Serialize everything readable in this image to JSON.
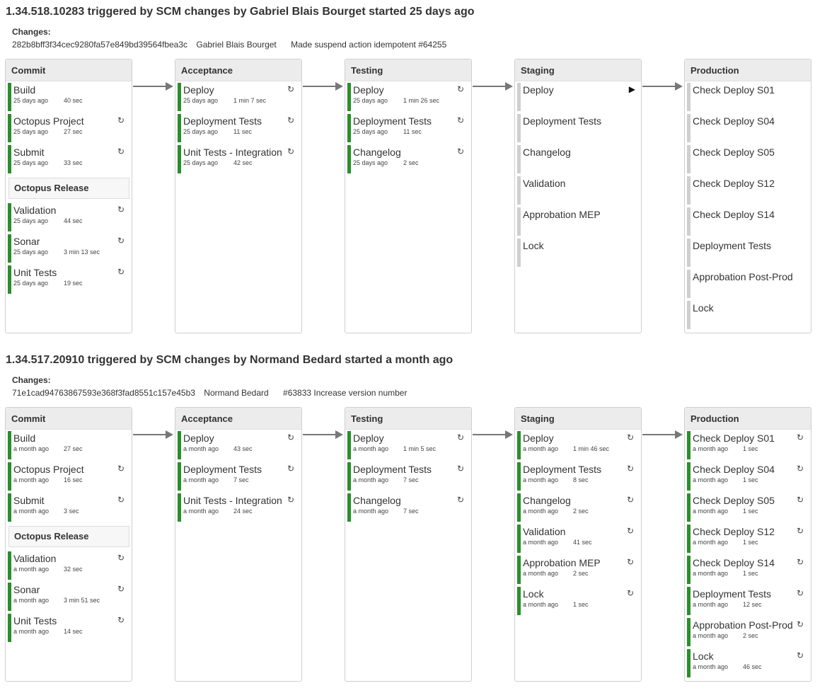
{
  "pipelines": [
    {
      "title": "1.34.518.10283 triggered by SCM changes by Gabriel Blais Bourget started 25 days ago",
      "changes_label": "Changes:",
      "commit_hash": "282b8bff3f34cec9280fa57e849bd39564fbea3c",
      "commit_author": "Gabriel Blais Bourget",
      "commit_message": "Made suspend action idempotent #64255",
      "stages": {
        "commit": {
          "name": "Commit",
          "jobs": [
            {
              "name": "Build",
              "when": "25 days ago",
              "duration": "40 sec"
            },
            {
              "name": "Octopus Project",
              "when": "25 days ago",
              "duration": "27 sec"
            },
            {
              "name": "Submit",
              "when": "25 days ago",
              "duration": "33 sec"
            }
          ],
          "group": "Octopus Release",
          "group_jobs": [
            {
              "name": "Validation",
              "when": "25 days ago",
              "duration": "44 sec"
            },
            {
              "name": "Sonar",
              "when": "25 days ago",
              "duration": "3 min 13 sec"
            },
            {
              "name": "Unit Tests",
              "when": "25 days ago",
              "duration": "19 sec"
            }
          ]
        },
        "acceptance": {
          "name": "Acceptance",
          "jobs": [
            {
              "name": "Deploy",
              "when": "25 days ago",
              "duration": "1 min 7 sec"
            },
            {
              "name": "Deployment Tests",
              "when": "25 days ago",
              "duration": "11 sec"
            },
            {
              "name": "Unit Tests - Integration",
              "when": "25 days ago",
              "duration": "42 sec"
            }
          ]
        },
        "testing": {
          "name": "Testing",
          "jobs": [
            {
              "name": "Deploy",
              "when": "25 days ago",
              "duration": "1 min 26 sec"
            },
            {
              "name": "Deployment Tests",
              "when": "25 days ago",
              "duration": "11 sec"
            },
            {
              "name": "Changelog",
              "when": "25 days ago",
              "duration": "2 sec"
            }
          ]
        },
        "staging": {
          "name": "Staging",
          "jobs": [
            {
              "name": "Deploy"
            },
            {
              "name": "Deployment Tests"
            },
            {
              "name": "Changelog"
            },
            {
              "name": "Validation"
            },
            {
              "name": "Approbation MEP"
            },
            {
              "name": "Lock"
            }
          ]
        },
        "production": {
          "name": "Production",
          "jobs": [
            {
              "name": "Check Deploy S01"
            },
            {
              "name": "Check Deploy S04"
            },
            {
              "name": "Check Deploy S05"
            },
            {
              "name": "Check Deploy S12"
            },
            {
              "name": "Check Deploy S14"
            },
            {
              "name": "Deployment Tests"
            },
            {
              "name": "Approbation Post-Prod"
            },
            {
              "name": "Lock"
            }
          ]
        }
      }
    },
    {
      "title": "1.34.517.20910 triggered by SCM changes by Normand Bedard started a month ago",
      "changes_label": "Changes:",
      "commit_hash": "71e1cad94763867593e368f3fad8551c157e45b3",
      "commit_author": "Normand Bedard",
      "commit_message": "#63833 Increase version number",
      "stages": {
        "commit": {
          "name": "Commit",
          "jobs": [
            {
              "name": "Build",
              "when": "a month ago",
              "duration": "27 sec"
            },
            {
              "name": "Octopus Project",
              "when": "a month ago",
              "duration": "16 sec"
            },
            {
              "name": "Submit",
              "when": "a month ago",
              "duration": "3 sec"
            }
          ],
          "group": "Octopus Release",
          "group_jobs": [
            {
              "name": "Validation",
              "when": "a month ago",
              "duration": "32 sec"
            },
            {
              "name": "Sonar",
              "when": "a month ago",
              "duration": "3 min 51 sec"
            },
            {
              "name": "Unit Tests",
              "when": "a month ago",
              "duration": "14 sec"
            }
          ]
        },
        "acceptance": {
          "name": "Acceptance",
          "jobs": [
            {
              "name": "Deploy",
              "when": "a month ago",
              "duration": "43 sec"
            },
            {
              "name": "Deployment Tests",
              "when": "a month ago",
              "duration": "7 sec"
            },
            {
              "name": "Unit Tests - Integration",
              "when": "a month ago",
              "duration": "24 sec"
            }
          ]
        },
        "testing": {
          "name": "Testing",
          "jobs": [
            {
              "name": "Deploy",
              "when": "a month ago",
              "duration": "1 min 5 sec"
            },
            {
              "name": "Deployment Tests",
              "when": "a month ago",
              "duration": "7 sec"
            },
            {
              "name": "Changelog",
              "when": "a month ago",
              "duration": "7 sec"
            }
          ]
        },
        "staging": {
          "name": "Staging",
          "jobs": [
            {
              "name": "Deploy",
              "when": "a month ago",
              "duration": "1 min 46 sec"
            },
            {
              "name": "Deployment Tests",
              "when": "a month ago",
              "duration": "8 sec"
            },
            {
              "name": "Changelog",
              "when": "a month ago",
              "duration": "2 sec"
            },
            {
              "name": "Validation",
              "when": "a month ago",
              "duration": "41 sec"
            },
            {
              "name": "Approbation MEP",
              "when": "a month ago",
              "duration": "2 sec"
            },
            {
              "name": "Lock",
              "when": "a month ago",
              "duration": "1 sec"
            }
          ]
        },
        "production": {
          "name": "Production",
          "jobs": [
            {
              "name": "Check Deploy S01",
              "when": "a month ago",
              "duration": "1 sec"
            },
            {
              "name": "Check Deploy S04",
              "when": "a month ago",
              "duration": "1 sec"
            },
            {
              "name": "Check Deploy S05",
              "when": "a month ago",
              "duration": "1 sec"
            },
            {
              "name": "Check Deploy S12",
              "when": "a month ago",
              "duration": "1 sec"
            },
            {
              "name": "Check Deploy S14",
              "when": "a month ago",
              "duration": "1 sec"
            },
            {
              "name": "Deployment Tests",
              "when": "a month ago",
              "duration": "12 sec"
            },
            {
              "name": "Approbation Post-Prod",
              "when": "a month ago",
              "duration": "2 sec"
            },
            {
              "name": "Lock",
              "when": "a month ago",
              "duration": "46 sec"
            }
          ]
        }
      }
    }
  ],
  "icons": {
    "rerun": "↻",
    "run": "▶"
  },
  "colors": {
    "passed": "#2a8f2a",
    "not_run": "#cfcfcf"
  }
}
